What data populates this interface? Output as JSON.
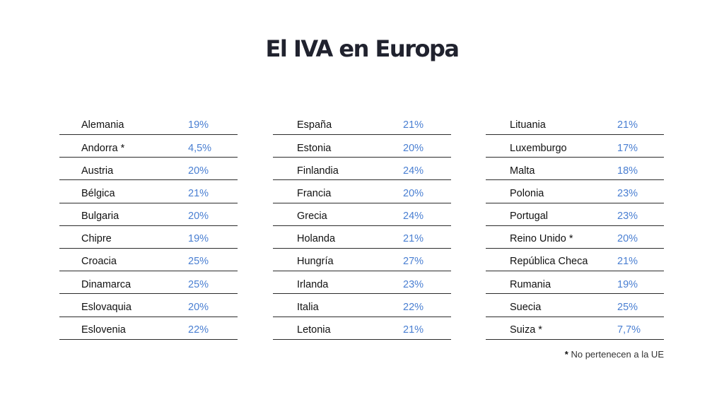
{
  "title": "El IVA en Europa",
  "accent_color": "#4a7fd2",
  "columns": [
    {
      "rows": [
        {
          "country": "Alemania",
          "rate": "19%"
        },
        {
          "country": "Andorra *",
          "rate": "4,5%"
        },
        {
          "country": "Austria",
          "rate": "20%"
        },
        {
          "country": "Bélgica",
          "rate": "21%"
        },
        {
          "country": "Bulgaria",
          "rate": "20%"
        },
        {
          "country": "Chipre",
          "rate": "19%"
        },
        {
          "country": "Croacia",
          "rate": "25%"
        },
        {
          "country": "Dinamarca",
          "rate": "25%"
        },
        {
          "country": "Eslovaquia",
          "rate": "20%"
        },
        {
          "country": "Eslovenia",
          "rate": "22%"
        }
      ]
    },
    {
      "rows": [
        {
          "country": "España",
          "rate": "21%"
        },
        {
          "country": "Estonia",
          "rate": "20%"
        },
        {
          "country": "Finlandia",
          "rate": "24%"
        },
        {
          "country": "Francia",
          "rate": "20%"
        },
        {
          "country": "Grecia",
          "rate": "24%"
        },
        {
          "country": "Holanda",
          "rate": "21%"
        },
        {
          "country": "Hungría",
          "rate": "27%"
        },
        {
          "country": "Irlanda",
          "rate": "23%"
        },
        {
          "country": "Italia",
          "rate": "22%"
        },
        {
          "country": "Letonia",
          "rate": "21%"
        }
      ]
    },
    {
      "rows": [
        {
          "country": "Lituania",
          "rate": "21%"
        },
        {
          "country": "Luxemburgo",
          "rate": "17%"
        },
        {
          "country": "Malta",
          "rate": "18%"
        },
        {
          "country": "Polonia",
          "rate": "23%"
        },
        {
          "country": "Portugal",
          "rate": "23%"
        },
        {
          "country": "Reino Unido *",
          "rate": "20%"
        },
        {
          "country": "República Checa",
          "rate": "21%"
        },
        {
          "country": "Rumania",
          "rate": "19%"
        },
        {
          "country": "Suecia",
          "rate": "25%"
        },
        {
          "country": "Suiza *",
          "rate": "7,7%"
        }
      ]
    }
  ],
  "footnote": {
    "marker": "*",
    "text": " No pertenecen a la UE"
  }
}
